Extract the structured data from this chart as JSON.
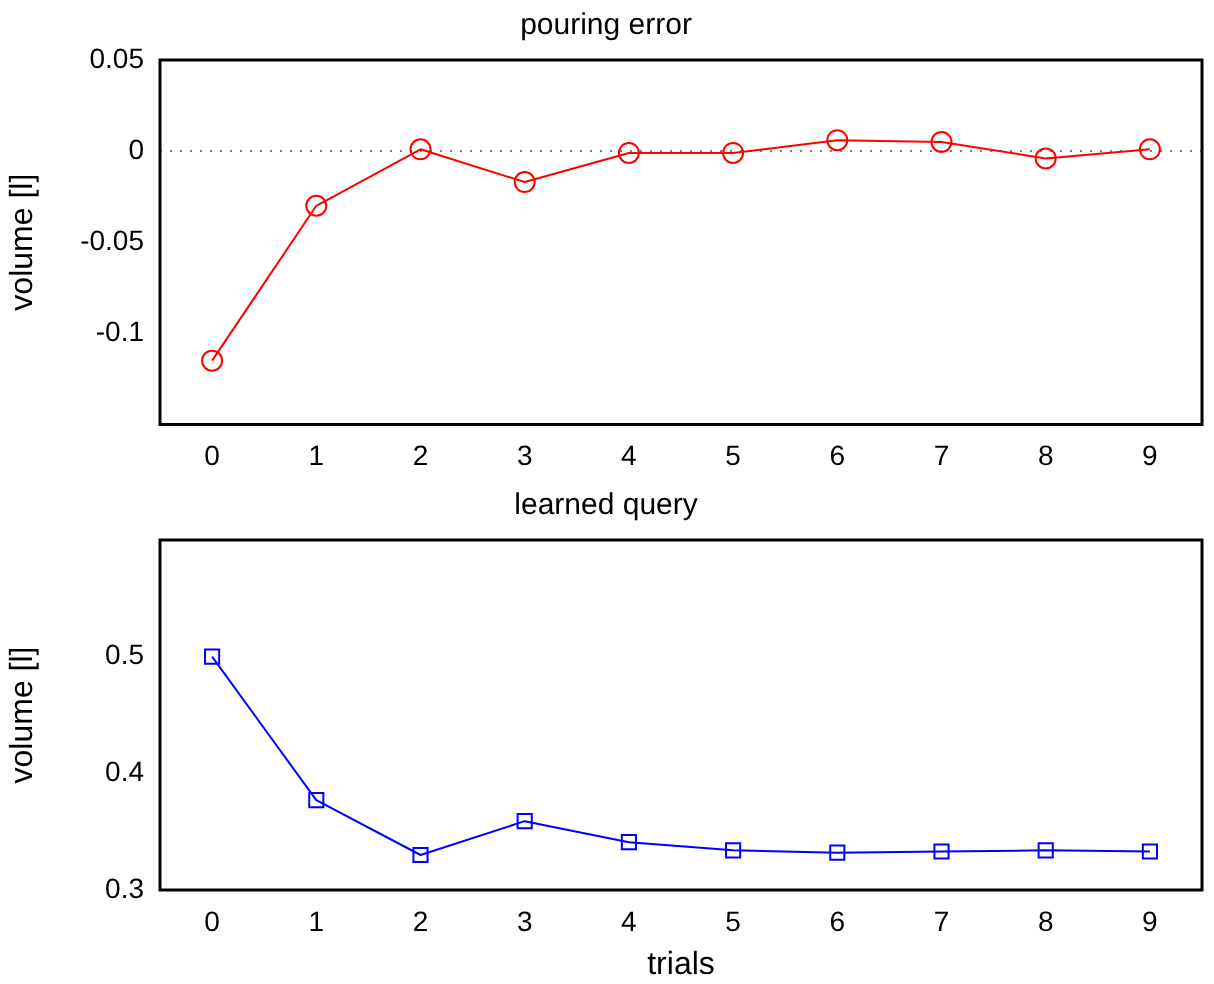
{
  "chart_data": [
    {
      "type": "line",
      "title": "pouring error",
      "ylabel": "volume [l]",
      "x": [
        0,
        1,
        2,
        3,
        4,
        5,
        6,
        7,
        8,
        9
      ],
      "xlim": [
        -0.5,
        9.5
      ],
      "xticks": [
        0,
        1,
        2,
        3,
        4,
        5,
        6,
        7,
        8,
        9
      ],
      "ylim": [
        -0.15,
        0.05
      ],
      "yticks": [
        -0.1,
        -0.05,
        0,
        0.05
      ],
      "marker": "circle",
      "ref_lines": [
        {
          "axis": "y",
          "value": 0,
          "color": "#808080",
          "line_style": "dotted"
        }
      ],
      "series": [
        {
          "color": "#ff0000",
          "values": [
            -0.115,
            -0.03,
            0.001,
            -0.017,
            -0.001,
            -0.001,
            0.006,
            0.005,
            -0.004,
            0.001
          ]
        }
      ]
    },
    {
      "type": "line",
      "title": "learned query",
      "xlabel": "trials",
      "ylabel": "volume [l]",
      "x": [
        0,
        1,
        2,
        3,
        4,
        5,
        6,
        7,
        8,
        9
      ],
      "xlim": [
        -0.5,
        9.5
      ],
      "xticks": [
        0,
        1,
        2,
        3,
        4,
        5,
        6,
        7,
        8,
        9
      ],
      "ylim": [
        0.3,
        0.6
      ],
      "yticks": [
        0.3,
        0.4,
        0.5
      ],
      "marker": "square",
      "series": [
        {
          "color": "#0000ff",
          "values": [
            0.5,
            0.377,
            0.33,
            0.359,
            0.341,
            0.334,
            0.332,
            0.333,
            0.334,
            0.333
          ]
        }
      ]
    }
  ]
}
